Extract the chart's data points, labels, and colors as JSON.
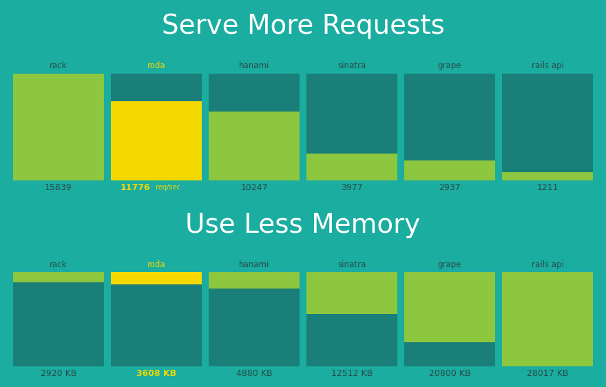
{
  "bg_color": "#1aada0",
  "teal_color": "#1a7f78",
  "green_color": "#8dc63f",
  "yellow_color": "#f5d800",
  "title_color": "#ffffff",
  "dark_label_color": "#2a4a47",
  "roda_label_color": "#f5d800",
  "title1": "Serve More Requests",
  "title2": "Use Less Memory",
  "req_labels": [
    "rack",
    "roda",
    "hanami",
    "sinatra",
    "grape",
    "rails api"
  ],
  "req_values": [
    15839,
    11776,
    10247,
    3977,
    2937,
    1211
  ],
  "req_roda_idx": 1,
  "mem_labels": [
    "rack",
    "roda",
    "hanami",
    "sinatra",
    "grape",
    "rails api"
  ],
  "mem_values": [
    2920,
    3608,
    4880,
    12512,
    20800,
    28017
  ],
  "mem_roda_idx": 1,
  "title1_fontsize": 28,
  "title2_fontsize": 28,
  "label_fontsize": 8.5,
  "value_fontsize": 9,
  "value_unit_fontsize": 7,
  "bar_gap": 0.012,
  "n_bars": 6
}
